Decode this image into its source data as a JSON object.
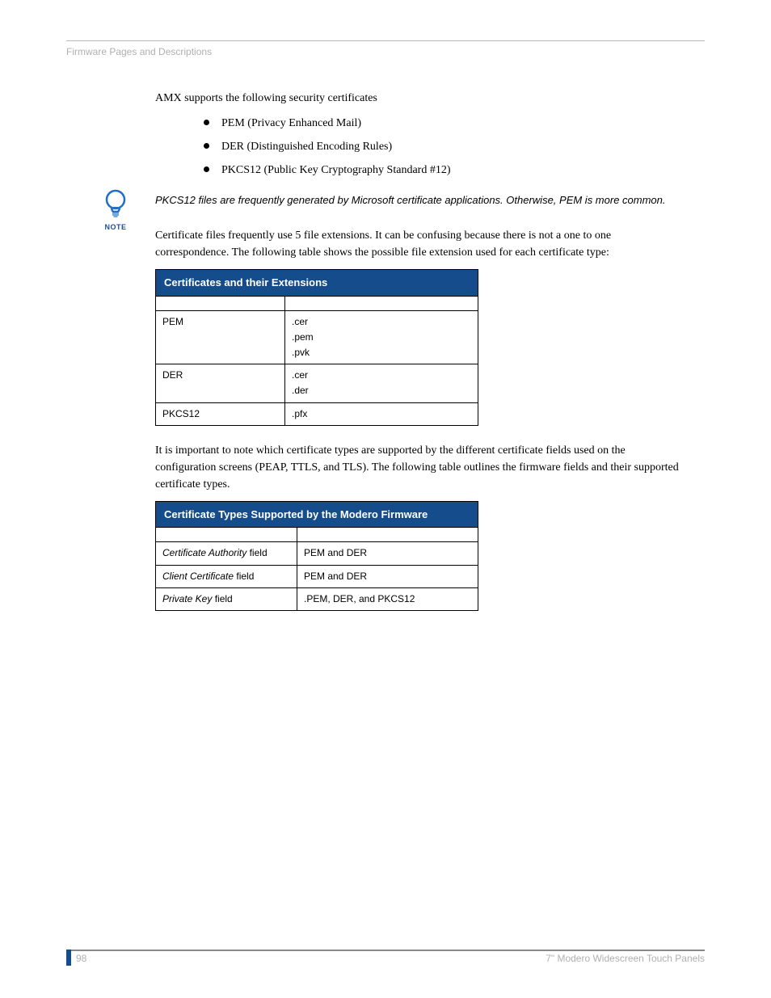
{
  "header": {
    "running": "Firmware Pages and Descriptions"
  },
  "intro": "AMX supports the following security certificates",
  "bullets": [
    "PEM (Privacy Enhanced Mail)",
    "DER (Distinguished Encoding Rules)",
    "PKCS12 (Public Key Cryptography Standard #12)"
  ],
  "note": {
    "label": "NOTE",
    "text": "PKCS12 files are frequently generated by Microsoft certificate applications. Otherwise, PEM is more common.",
    "icon_color": "#1f6fc9",
    "icon_base": "#7aa7d9"
  },
  "para1": "Certificate files frequently use 5 file extensions. It can be confusing because there is not a one to one correspondence. The following table shows the possible file extension used for each certificate type:",
  "table1": {
    "title": "Certificates and their Extensions",
    "header_bg": "#154c8c",
    "header_fg": "#ffffff",
    "border_color": "#000000",
    "col_widths": [
      "160px",
      "240px"
    ],
    "rows": [
      {
        "c1": "PEM",
        "c2": ".cer\n.pem\n.pvk"
      },
      {
        "c1": "DER",
        "c2": ".cer\n.der"
      },
      {
        "c1": "PKCS12",
        "c2": ".pfx"
      }
    ]
  },
  "para2": "It is important to note which certificate types are supported by the different certificate fields used on the configuration screens (PEAP, TTLS, and TLS). The following table outlines the firmware fields and their supported certificate types.",
  "table2": {
    "title": "Certificate Types Supported by the Modero Firmware",
    "header_bg": "#154c8c",
    "header_fg": "#ffffff",
    "border_color": "#000000",
    "col_widths": [
      "175px",
      "225px"
    ],
    "rows": [
      {
        "c1_ital": "Certificate Authority",
        "c1_rest": " field",
        "c2": "PEM and DER"
      },
      {
        "c1_ital": "Client Certificate",
        "c1_rest": " field",
        "c2": "PEM and DER"
      },
      {
        "c1_ital": "Private Key",
        "c1_rest": " field",
        "c2": ".PEM, DER, and PKCS12"
      }
    ]
  },
  "footer": {
    "page": "98",
    "title": "7\" Modero Widescreen Touch Panels",
    "tab_color": "#154c8c"
  }
}
